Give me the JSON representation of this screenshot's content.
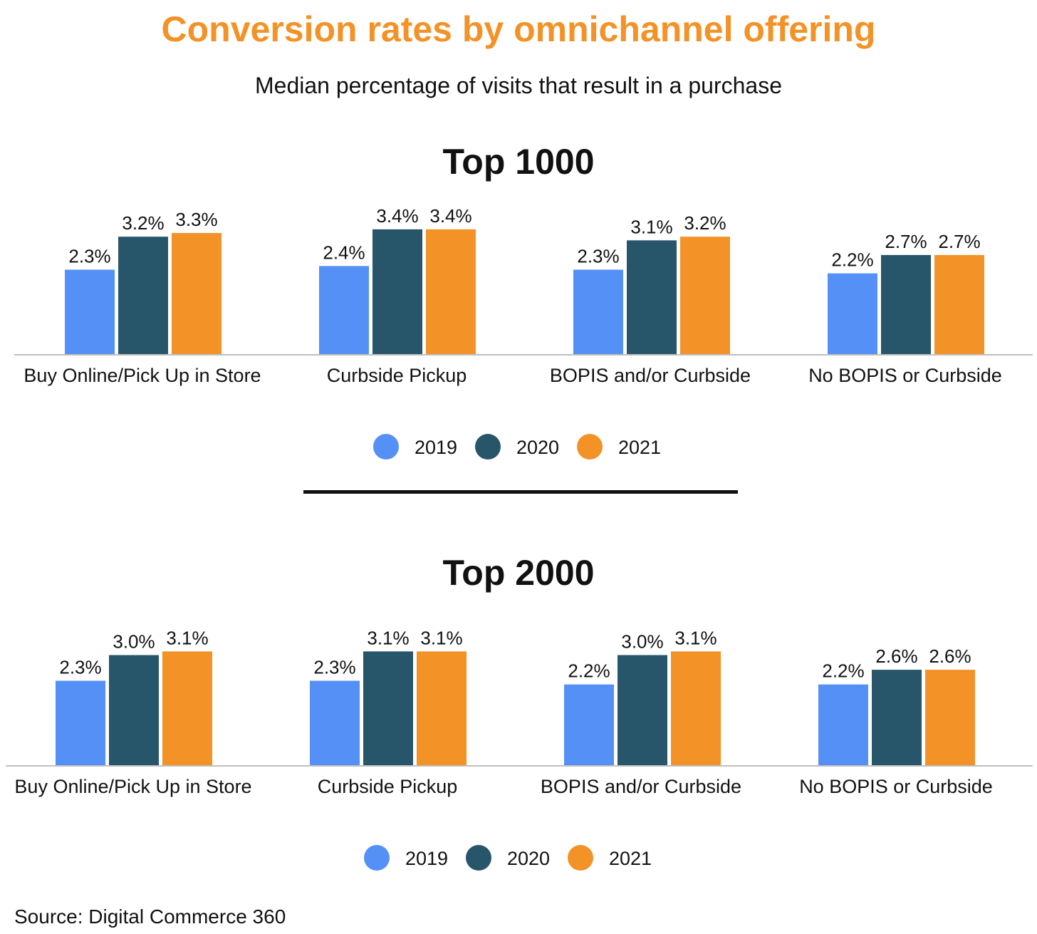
{
  "title": "Conversion rates by omnichannel offering",
  "subtitle": "Median percentage of visits that result in a purchase",
  "source": "Source: Digital Commerce 360",
  "colors": {
    "title": "#f39226",
    "2019": "#5590f7",
    "2020": "#27566b",
    "2021": "#f39226",
    "axis": "#bfbfbf"
  },
  "chart_data": [
    {
      "type": "bar",
      "title": "Top 1000",
      "categories": [
        "Buy Online/Pick Up in Store",
        "Curbside Pickup",
        "BOPIS and/or Curbside",
        "No BOPIS or Curbside"
      ],
      "series": [
        {
          "name": "2019",
          "values": [
            2.3,
            2.4,
            2.3,
            2.2
          ],
          "labels": [
            "2.3%",
            "2.4%",
            "2.3%",
            "2.2%"
          ]
        },
        {
          "name": "2020",
          "values": [
            3.2,
            3.4,
            3.1,
            2.7
          ],
          "labels": [
            "3.2%",
            "3.4%",
            "3.1%",
            "2.7%"
          ]
        },
        {
          "name": "2021",
          "values": [
            3.3,
            3.4,
            3.2,
            2.7
          ],
          "labels": [
            "3.3%",
            "3.4%",
            "3.2%",
            "2.7%"
          ]
        }
      ],
      "legend": [
        "2019",
        "2020",
        "2021"
      ],
      "legend_position": "bottom",
      "ylim": [
        0,
        3.4
      ],
      "grid": false
    },
    {
      "type": "bar",
      "title": "Top 2000",
      "categories": [
        "Buy Online/Pick Up in Store",
        "Curbside Pickup",
        "BOPIS and/or Curbside",
        "No BOPIS or Curbside"
      ],
      "series": [
        {
          "name": "2019",
          "values": [
            2.3,
            2.3,
            2.2,
            2.2
          ],
          "labels": [
            "2.3%",
            "2.3%",
            "2.2%",
            "2.2%"
          ]
        },
        {
          "name": "2020",
          "values": [
            3.0,
            3.1,
            3.0,
            2.6
          ],
          "labels": [
            "3.0%",
            "3.1%",
            "3.0%",
            "2.6%"
          ]
        },
        {
          "name": "2021",
          "values": [
            3.1,
            3.1,
            3.1,
            2.6
          ],
          "labels": [
            "3.1%",
            "3.1%",
            "3.1%",
            "2.6%"
          ]
        }
      ],
      "legend": [
        "2019",
        "2020",
        "2021"
      ],
      "legend_position": "bottom",
      "ylim": [
        0,
        3.1
      ],
      "grid": false
    }
  ]
}
